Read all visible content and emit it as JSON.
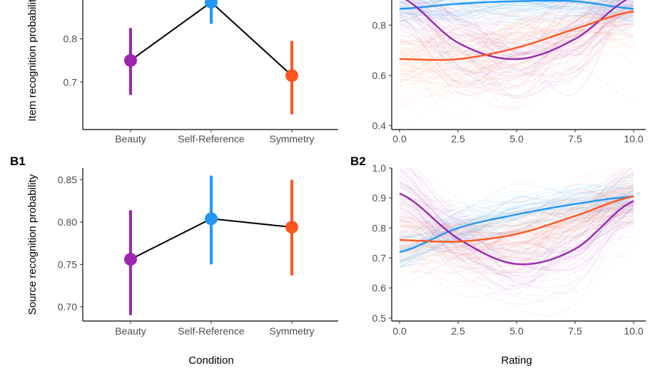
{
  "colors": {
    "Beauty": "#9b27b0",
    "Self-Reference": "#2196f3",
    "Symmetry": "#ff5722"
  },
  "shared_axis_labels": {
    "x_left": "Condition",
    "x_right": "Rating"
  },
  "chart_data": [
    {
      "id": "A1",
      "type": "line",
      "panel_label": "",
      "categories": [
        "Beauty",
        "Self-Reference",
        "Symmetry"
      ],
      "values": [
        0.75,
        0.885,
        0.715
      ],
      "ci_low": [
        0.67,
        0.835,
        0.625
      ],
      "ci_high": [
        0.825,
        0.94,
        0.795
      ],
      "ylabel": "Item recognition probability",
      "yticks": [
        0.7,
        0.8
      ],
      "ylim": [
        0.59,
        0.89
      ],
      "grid": false
    },
    {
      "id": "A2",
      "type": "line",
      "panel_label": "",
      "series": [
        {
          "name": "Self-Reference",
          "x": [
            0,
            2.5,
            5,
            7.5,
            10
          ],
          "values": [
            0.865,
            0.885,
            0.895,
            0.895,
            0.865
          ],
          "spread": 0.07
        },
        {
          "name": "Beauty",
          "x": [
            0,
            2.5,
            5,
            7.5,
            10
          ],
          "values": [
            0.915,
            0.73,
            0.665,
            0.745,
            0.915
          ],
          "spread": 0.13
        },
        {
          "name": "Symmetry",
          "x": [
            0,
            2.5,
            5,
            7.5,
            10
          ],
          "values": [
            0.665,
            0.665,
            0.71,
            0.785,
            0.855
          ],
          "spread": 0.15
        }
      ],
      "xticks": [
        "0.0",
        "2.5",
        "5.0",
        "7.5",
        "10.0"
      ],
      "yticks": [
        "0.4",
        "0.6",
        "0.8"
      ],
      "xlim": [
        -0.4,
        10.4
      ],
      "ylim": [
        0.385,
        0.9
      ],
      "grid": false
    },
    {
      "id": "B1",
      "type": "line",
      "panel_label": "B1",
      "categories": [
        "Beauty",
        "Self-Reference",
        "Symmetry"
      ],
      "values": [
        0.756,
        0.804,
        0.794
      ],
      "ci_low": [
        0.69,
        0.75,
        0.737
      ],
      "ci_high": [
        0.814,
        0.855,
        0.85
      ],
      "ylabel": "Source recognition probability",
      "yticks": [
        0.7,
        0.75,
        0.8,
        0.85
      ],
      "ylim": [
        0.683,
        0.864
      ],
      "grid": false
    },
    {
      "id": "B2",
      "type": "line",
      "panel_label": "B2",
      "series": [
        {
          "name": "Self-Reference",
          "x": [
            0,
            2.5,
            5,
            7.5,
            10
          ],
          "values": [
            0.72,
            0.8,
            0.845,
            0.88,
            0.905
          ],
          "spread": 0.06
        },
        {
          "name": "Beauty",
          "x": [
            0,
            2.5,
            5,
            7.5,
            10
          ],
          "values": [
            0.915,
            0.765,
            0.68,
            0.73,
            0.89
          ],
          "spread": 0.1
        },
        {
          "name": "Symmetry",
          "x": [
            0,
            2.5,
            5,
            7.5,
            10
          ],
          "values": [
            0.76,
            0.755,
            0.78,
            0.84,
            0.905
          ],
          "spread": 0.08
        }
      ],
      "xticks": [
        "0.0",
        "2.5",
        "5.0",
        "7.5",
        "10.0"
      ],
      "yticks": [
        "0.5",
        "0.6",
        "0.7",
        "0.8",
        "0.9",
        "1.0"
      ],
      "xlim": [
        -0.4,
        10.4
      ],
      "ylim": [
        0.49,
        1.0
      ],
      "grid": false
    }
  ]
}
